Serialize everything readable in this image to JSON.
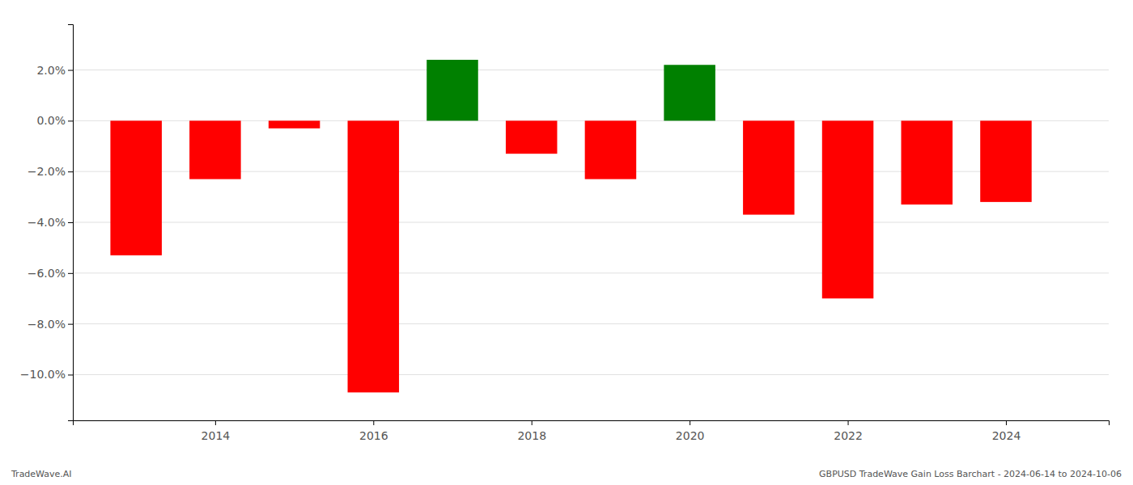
{
  "chart_data": {
    "type": "bar",
    "x": [
      2013,
      2014,
      2015,
      2016,
      2017,
      2018,
      2019,
      2020,
      2021,
      2022,
      2023,
      2024
    ],
    "values": [
      -0.053,
      -0.023,
      -0.003,
      -0.107,
      0.024,
      -0.013,
      -0.023,
      0.022,
      -0.037,
      -0.07,
      -0.033,
      -0.032
    ],
    "colors": [
      "#ff0000",
      "#ff0000",
      "#ff0000",
      "#ff0000",
      "#008000",
      "#ff0000",
      "#ff0000",
      "#008000",
      "#ff0000",
      "#ff0000",
      "#ff0000",
      "#ff0000"
    ],
    "xlim": [
      2012.2,
      2025.3
    ],
    "xticks": [
      2014,
      2016,
      2018,
      2020,
      2022,
      2024
    ],
    "ylim": [
      -0.118,
      0.038
    ],
    "yticks": [
      {
        "value": -0.1,
        "label": "−10.0%"
      },
      {
        "value": -0.08,
        "label": "−8.0%"
      },
      {
        "value": -0.06,
        "label": "−6.0%"
      },
      {
        "value": -0.04,
        "label": "−4.0%"
      },
      {
        "value": -0.02,
        "label": "−2.0%"
      },
      {
        "value": 0.0,
        "label": "0.0%"
      },
      {
        "value": 0.02,
        "label": "2.0%"
      }
    ],
    "grid": true,
    "annotations": [
      "TradeWave.AI",
      "GBPUSD TradeWave Gain Loss Barchart - 2024-06-14 to 2024-10-06"
    ]
  }
}
